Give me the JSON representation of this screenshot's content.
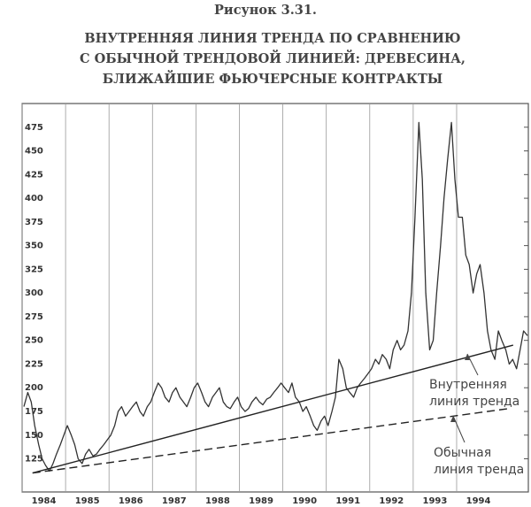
{
  "chart_data": {
    "type": "line",
    "figure_label": "Рисунок 3.31.",
    "title": [
      "ВНУТРЕННЯЯ ЛИНИЯ ТРЕНДА ПО СРАВНЕНИЮ",
      "С ОБЫЧНОЙ ТРЕНДОВОЙ ЛИНИЕЙ: ДРЕВЕСИНА,",
      "БЛИЖАЙШИЕ ФЬЮЧЕРСНЫЕ КОНТРАКТЫ"
    ],
    "series": [
      {
        "color": "#333333",
        "x": [
          1984.04,
          1984.13,
          1984.21,
          1984.29,
          1984.38,
          1984.46,
          1984.54,
          1984.63,
          1984.71,
          1984.79,
          1984.88,
          1984.96,
          1985.04,
          1985.13,
          1985.21,
          1985.29,
          1985.38,
          1985.46,
          1985.54,
          1985.63,
          1985.71,
          1985.79,
          1985.88,
          1985.96,
          1986.04,
          1986.13,
          1986.21,
          1986.29,
          1986.38,
          1986.46,
          1986.54,
          1986.63,
          1986.71,
          1986.79,
          1986.88,
          1986.96,
          1987.04,
          1987.13,
          1987.21,
          1987.29,
          1987.38,
          1987.46,
          1987.54,
          1987.63,
          1987.71,
          1987.79,
          1987.88,
          1987.96,
          1988.04,
          1988.13,
          1988.21,
          1988.29,
          1988.38,
          1988.46,
          1988.54,
          1988.63,
          1988.71,
          1988.79,
          1988.88,
          1988.96,
          1989.04,
          1989.13,
          1989.21,
          1989.29,
          1989.38,
          1989.46,
          1989.54,
          1989.63,
          1989.71,
          1989.79,
          1989.88,
          1989.96,
          1990.04,
          1990.13,
          1990.21,
          1990.29,
          1990.38,
          1990.46,
          1990.54,
          1990.63,
          1990.71,
          1990.79,
          1990.88,
          1990.96,
          1991.04,
          1991.13,
          1991.21,
          1991.29,
          1991.38,
          1991.46,
          1991.54,
          1991.63,
          1991.71,
          1991.79,
          1991.88,
          1991.96,
          1992.04,
          1992.13,
          1992.21,
          1992.29,
          1992.38,
          1992.46,
          1992.54,
          1992.63,
          1992.71,
          1992.79,
          1992.88,
          1992.96,
          1993.04,
          1993.13,
          1993.21,
          1993.29,
          1993.38,
          1993.46,
          1993.54,
          1993.63,
          1993.71,
          1993.79,
          1993.88,
          1993.96,
          1994.04,
          1994.13,
          1994.21,
          1994.29,
          1994.38,
          1994.46,
          1994.54,
          1994.63,
          1994.71,
          1994.79,
          1994.88,
          1994.96,
          1995.04,
          1995.13,
          1995.21,
          1995.29,
          1995.38,
          1995.46,
          1995.54,
          1995.63
        ],
        "values": [
          180,
          195,
          185,
          160,
          140,
          125,
          118,
          112,
          120,
          130,
          140,
          150,
          160,
          150,
          140,
          125,
          120,
          130,
          135,
          128,
          130,
          135,
          140,
          145,
          150,
          160,
          175,
          180,
          170,
          175,
          180,
          185,
          175,
          170,
          180,
          185,
          195,
          205,
          200,
          190,
          185,
          195,
          200,
          190,
          185,
          180,
          190,
          200,
          205,
          195,
          185,
          180,
          190,
          195,
          200,
          185,
          180,
          178,
          185,
          190,
          180,
          175,
          178,
          185,
          190,
          185,
          182,
          188,
          190,
          195,
          200,
          205,
          200,
          195,
          205,
          190,
          185,
          175,
          180,
          170,
          160,
          155,
          165,
          170,
          160,
          175,
          190,
          230,
          220,
          200,
          195,
          190,
          200,
          205,
          210,
          215,
          220,
          230,
          225,
          235,
          230,
          220,
          240,
          250,
          240,
          245,
          260,
          300,
          380,
          480,
          420,
          300,
          240,
          250,
          300,
          350,
          400,
          440,
          480,
          420,
          380,
          380,
          340,
          330,
          300,
          320,
          330,
          300,
          260,
          240,
          230,
          260,
          250,
          240,
          225,
          230,
          220,
          240,
          260,
          255
        ]
      }
    ],
    "trend_lines": [
      {
        "label_lines": [
          "Внутренняя",
          "линия тренда"
        ],
        "dashed": false,
        "x": [
          1984.24,
          1995.3
        ],
        "values": [
          110,
          245
        ]
      },
      {
        "label_lines": [
          "Обычная",
          "линия тренда"
        ],
        "dashed": true,
        "x": [
          1984.24,
          1995.2
        ],
        "values": [
          110,
          178
        ]
      }
    ],
    "xlim": [
      1984,
      1995.65
    ],
    "xticks": [
      1984,
      1985,
      1986,
      1987,
      1988,
      1989,
      1990,
      1991,
      1992,
      1993,
      1994
    ],
    "ylim": [
      90,
      500
    ],
    "yticks": [
      125,
      150,
      175,
      200,
      225,
      250,
      275,
      300,
      325,
      350,
      375,
      400,
      425,
      450,
      475
    ],
    "grid": true
  }
}
